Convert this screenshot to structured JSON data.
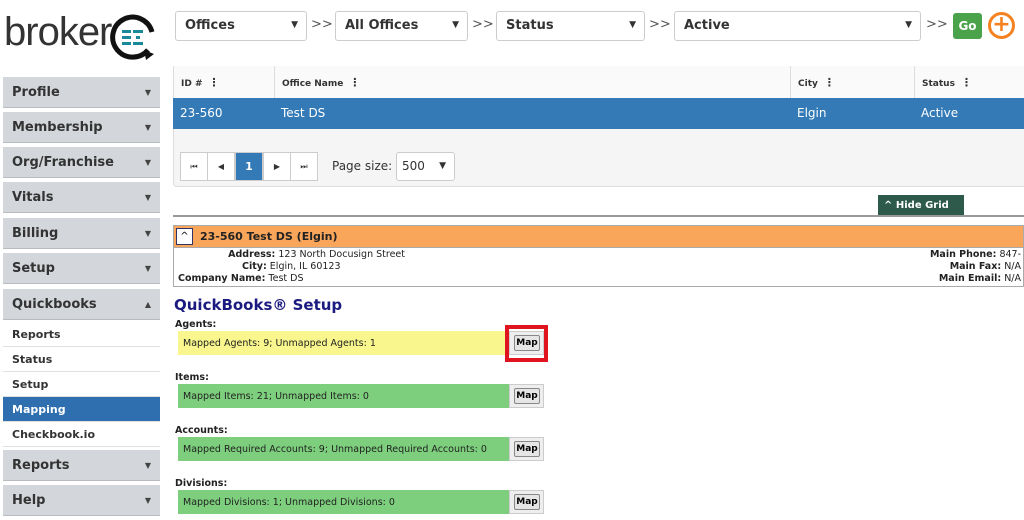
{
  "logo": {
    "text": "broker",
    "badge": "EZ"
  },
  "sidebar": {
    "items": [
      {
        "label": "Profile",
        "top": 77
      },
      {
        "label": "Membership"
      },
      {
        "label": "Org/Franchise"
      },
      {
        "label": "Vitals"
      },
      {
        "label": "Billing"
      },
      {
        "label": "Setup"
      },
      {
        "label": "Quickbooks"
      }
    ],
    "sub": [
      "Reports",
      "Status",
      "Setup",
      "Mapping",
      "Checkbook.io"
    ],
    "bottom": [
      "Reports",
      "Help"
    ],
    "active_sub": "Mapping"
  },
  "filters": {
    "f1": "Offices",
    "f2": "All Offices",
    "f3": "Status",
    "f4": "Active",
    "sep": ">>",
    "go": "Go"
  },
  "grid": {
    "columns": [
      "ID #",
      "Office Name",
      "City",
      "Status"
    ],
    "row": [
      "23-560",
      "Test DS",
      "Elgin",
      "Active"
    ],
    "page": "1",
    "page_size_label": "Page size:",
    "page_size": "500",
    "hide_grid": "Hide Grid"
  },
  "office": {
    "title": "23-560 Test DS (Elgin)",
    "address_label": "Address:",
    "address": "123 North Docusign Street",
    "city_label": "City:",
    "city": "Elgin, IL 60123",
    "company_label": "Company Name:",
    "company": "Test DS",
    "phone_label": "Main Phone:",
    "phone": "847-",
    "fax_label": "Main Fax:",
    "fax": "N/A",
    "email_label": "Main Email:",
    "email": "N/A"
  },
  "qb": {
    "title": "QuickBooks® Setup",
    "map": "Map",
    "sections": [
      {
        "label": "Agents:",
        "text": "Mapped Agents: 9; Unmapped Agents: 1",
        "color": "#f8f68c"
      },
      {
        "label": "Items:",
        "text": "Mapped Items: 21; Unmapped Items: 0",
        "color": "#7dcf7d"
      },
      {
        "label": "Accounts:",
        "text": "Mapped Required Accounts: 9; Unmapped Required Accounts: 0",
        "color": "#7dcf7d"
      },
      {
        "label": "Divisions:",
        "text": "Mapped Divisions: 1; Unmapped Divisions: 0",
        "color": "#7dcf7d"
      }
    ]
  }
}
